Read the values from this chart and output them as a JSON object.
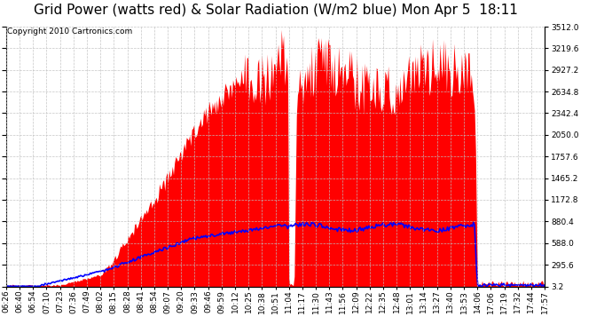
{
  "title": "Grid Power (watts red) & Solar Radiation (W/m2 blue) Mon Apr 5  18:11",
  "copyright": "Copyright 2010 Cartronics.com",
  "y_ticks": [
    3.2,
    295.6,
    588.0,
    880.4,
    1172.8,
    1465.2,
    1757.6,
    2050.0,
    2342.4,
    2634.8,
    2927.2,
    3219.6,
    3512.0
  ],
  "y_min": 3.2,
  "y_max": 3512.0,
  "x_labels": [
    "06:26",
    "06:40",
    "06:54",
    "07:10",
    "07:23",
    "07:36",
    "07:49",
    "08:02",
    "08:15",
    "08:28",
    "08:41",
    "08:54",
    "09:07",
    "09:20",
    "09:33",
    "09:46",
    "09:59",
    "10:12",
    "10:25",
    "10:38",
    "10:51",
    "11:04",
    "11:17",
    "11:30",
    "11:43",
    "11:56",
    "12:09",
    "12:22",
    "12:35",
    "12:48",
    "13:01",
    "13:14",
    "13:27",
    "13:40",
    "13:53",
    "14:06",
    "17:06",
    "17:19",
    "17:32",
    "17:44",
    "17:57"
  ],
  "bg_color": "#ffffff",
  "grid_color": "#c0c0c0",
  "red_fill": "#ff0000",
  "blue_line": "#0000ff",
  "title_fontsize": 11,
  "tick_fontsize": 6.5,
  "copyright_fontsize": 6.5
}
